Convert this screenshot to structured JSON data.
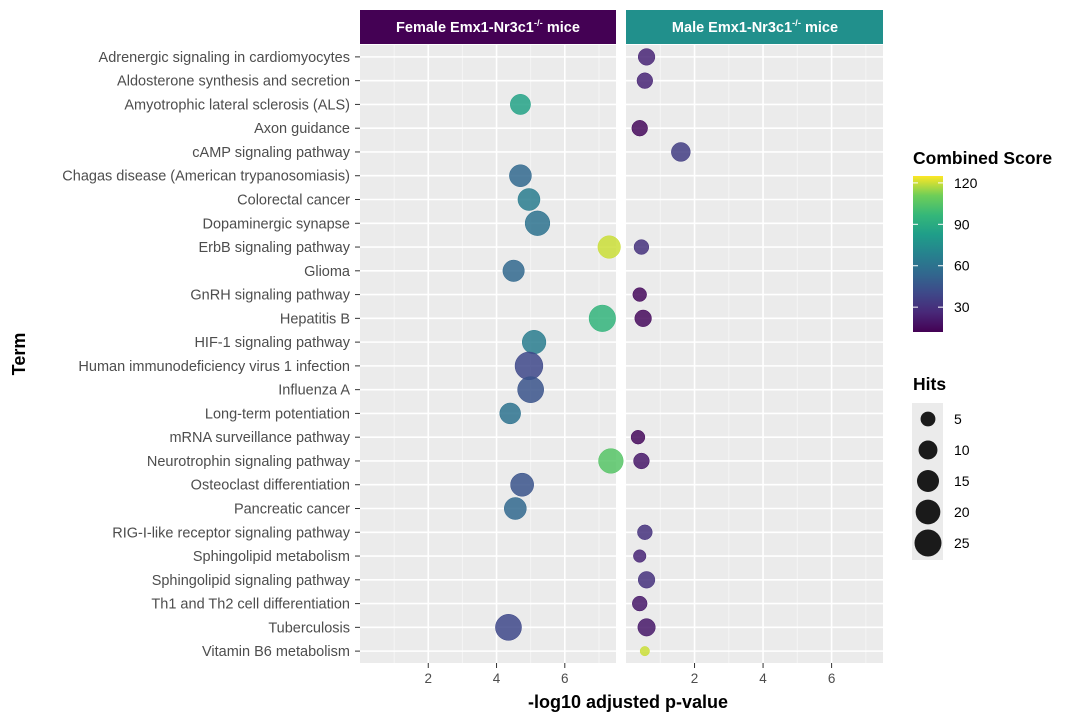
{
  "chart_data": {
    "type": "scatter",
    "xlabel": "-log10 adjusted p-value",
    "ylabel": "Term",
    "xlim": [
      0,
      7.5
    ],
    "x_ticks": [
      2,
      4,
      6
    ],
    "grid": true,
    "panels": [
      {
        "title": "Female Emx1-Nr3c1",
        "superscript": "-/-",
        "title_suffix": " mice",
        "color": "#440154"
      },
      {
        "title": "Male Emx1-Nr3c1",
        "superscript": "-/-",
        "title_suffix": " mice",
        "color": "#21908c"
      }
    ],
    "terms": [
      "Adrenergic signaling in cardiomyocytes",
      "Aldosterone synthesis and secretion",
      "Amyotrophic lateral sclerosis (ALS)",
      "Axon guidance",
      "cAMP signaling pathway",
      "Chagas disease (American trypanosomiasis)",
      "Colorectal cancer",
      "Dopaminergic synapse",
      "ErbB signaling pathway",
      "Glioma",
      "GnRH signaling pathway",
      "Hepatitis B",
      "HIF-1 signaling pathway",
      "Human immunodeficiency virus 1 infection",
      "Influenza A",
      "Long-term potentiation",
      "mRNA surveillance pathway",
      "Neurotrophin signaling pathway",
      "Osteoclast differentiation",
      "Pancreatic cancer",
      "RIG-I-like receptor signaling pathway",
      "Sphingolipid metabolism",
      "Sphingolipid signaling pathway",
      "Th1 and Th2 cell differentiation",
      "Tuberculosis",
      "Vitamin B6 metabolism"
    ],
    "points": [
      {
        "panel": 0,
        "term": "Amyotrophic lateral sclerosis (ALS)",
        "x": 4.7,
        "score": 85,
        "hits": 12
      },
      {
        "panel": 0,
        "term": "Chagas disease (American trypanosomiasis)",
        "x": 4.7,
        "score": 55,
        "hits": 15
      },
      {
        "panel": 0,
        "term": "Colorectal cancer",
        "x": 4.95,
        "score": 65,
        "hits": 15
      },
      {
        "panel": 0,
        "term": "Dopaminergic synapse",
        "x": 5.2,
        "score": 60,
        "hits": 20
      },
      {
        "panel": 0,
        "term": "ErbB signaling pathway",
        "x": 7.3,
        "score": 120,
        "hits": 16
      },
      {
        "panel": 0,
        "term": "Glioma",
        "x": 4.5,
        "score": 55,
        "hits": 14
      },
      {
        "panel": 0,
        "term": "Hepatitis B",
        "x": 7.1,
        "score": 95,
        "hits": 24
      },
      {
        "panel": 0,
        "term": "HIF-1 signaling pathway",
        "x": 5.1,
        "score": 65,
        "hits": 18
      },
      {
        "panel": 0,
        "term": "Human immunodeficiency virus 1 infection",
        "x": 4.95,
        "score": 40,
        "hits": 27
      },
      {
        "panel": 0,
        "term": "Influenza A",
        "x": 5.0,
        "score": 45,
        "hits": 23
      },
      {
        "panel": 0,
        "term": "Long-term potentiation",
        "x": 4.4,
        "score": 60,
        "hits": 13
      },
      {
        "panel": 0,
        "term": "Neurotrophin signaling pathway",
        "x": 7.35,
        "score": 105,
        "hits": 20
      },
      {
        "panel": 0,
        "term": "Osteoclast differentiation",
        "x": 4.75,
        "score": 45,
        "hits": 17
      },
      {
        "panel": 0,
        "term": "Pancreatic cancer",
        "x": 4.55,
        "score": 55,
        "hits": 15
      },
      {
        "panel": 0,
        "term": "Tuberculosis",
        "x": 4.35,
        "score": 40,
        "hits": 23
      },
      {
        "panel": 1,
        "term": "Adrenergic signaling in cardiomyocytes",
        "x": 0.6,
        "score": 25,
        "hits": 7
      },
      {
        "panel": 1,
        "term": "Aldosterone synthesis and secretion",
        "x": 0.55,
        "score": 25,
        "hits": 6
      },
      {
        "panel": 1,
        "term": "Axon guidance",
        "x": 0.4,
        "score": 15,
        "hits": 6
      },
      {
        "panel": 1,
        "term": "cAMP signaling pathway",
        "x": 1.6,
        "score": 35,
        "hits": 10
      },
      {
        "panel": 1,
        "term": "ErbB signaling pathway",
        "x": 0.45,
        "score": 30,
        "hits": 5
      },
      {
        "panel": 1,
        "term": "GnRH signaling pathway",
        "x": 0.4,
        "score": 15,
        "hits": 4
      },
      {
        "panel": 1,
        "term": "Hepatitis B",
        "x": 0.5,
        "score": 15,
        "hits": 7
      },
      {
        "panel": 1,
        "term": "mRNA surveillance pathway",
        "x": 0.35,
        "score": 15,
        "hits": 4
      },
      {
        "panel": 1,
        "term": "Neurotrophin signaling pathway",
        "x": 0.45,
        "score": 20,
        "hits": 6
      },
      {
        "panel": 1,
        "term": "RIG-I-like receptor signaling pathway",
        "x": 0.55,
        "score": 30,
        "hits": 5
      },
      {
        "panel": 1,
        "term": "Sphingolipid metabolism",
        "x": 0.4,
        "score": 25,
        "hits": 3
      },
      {
        "panel": 1,
        "term": "Sphingolipid signaling pathway",
        "x": 0.6,
        "score": 30,
        "hits": 7
      },
      {
        "panel": 1,
        "term": "Th1 and Th2 cell differentiation",
        "x": 0.4,
        "score": 20,
        "hits": 5
      },
      {
        "panel": 1,
        "term": "Tuberculosis",
        "x": 0.6,
        "score": 20,
        "hits": 8
      },
      {
        "panel": 1,
        "term": "Vitamin B6 metabolism",
        "x": 0.55,
        "score": 120,
        "hits": 1
      }
    ],
    "legend": {
      "color_title": "Combined Score",
      "color_ticks": [
        30,
        60,
        90,
        120
      ],
      "color_range": [
        12,
        125
      ],
      "size_title": "Hits",
      "size_ticks": [
        5,
        10,
        15,
        20,
        25
      ]
    }
  }
}
